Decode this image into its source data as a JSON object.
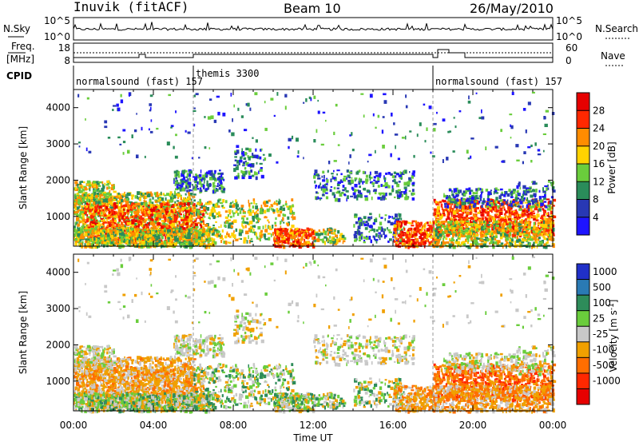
{
  "header": {
    "station": "Inuvik (fitACF)",
    "beam": "Beam 10",
    "date": "26/May/2010"
  },
  "top_panels": {
    "nsky_label": "N.Sky",
    "nsky_ticks": [
      "10^5",
      "10^0"
    ],
    "nsearch_label": "N.Search",
    "nsearch_ticks": [
      "10^5",
      "10^0"
    ],
    "freq_label": "Freq.",
    "freq_unit": "[MHz]",
    "freq_ticks": [
      "18",
      "8"
    ],
    "nave_label": "Nave",
    "nave_ticks": [
      "60",
      "0"
    ],
    "cpid_label": "CPID",
    "cpid_segments": [
      {
        "name": "normalsound (fast) 157",
        "start": 0,
        "end": 6
      },
      {
        "name": "themis 3300",
        "start": 6,
        "end": 18
      },
      {
        "name": "normalsound (fast) 157",
        "start": 18,
        "end": 24
      }
    ]
  },
  "chart_data": [
    {
      "type": "heatmap",
      "name": "power",
      "ylabel": "Slant Range [km]",
      "xlabel": "Time UT",
      "xlim": [
        0,
        24
      ],
      "ylim": [
        180,
        4500
      ],
      "x_ticks": [
        "00:00",
        "04:00",
        "08:00",
        "12:00",
        "16:00",
        "20:00",
        "00:00"
      ],
      "y_ticks": [
        1000,
        2000,
        3000,
        4000
      ],
      "colorbar_label": "Power [dB]",
      "colorbar_ticks": [
        "4",
        "8",
        "12",
        "16",
        "20",
        "24",
        "28"
      ],
      "colorbar_colors": [
        "#1e14ff",
        "#2838b4",
        "#2a8c5a",
        "#6acd3c",
        "#ffd200",
        "#ff8c00",
        "#ff2800",
        "#e60000"
      ]
    },
    {
      "type": "heatmap",
      "name": "velocity",
      "ylabel": "Slant Range [km]",
      "xlabel": "Time UT",
      "xlim": [
        0,
        24
      ],
      "ylim": [
        180,
        4500
      ],
      "x_ticks": [
        "00:00",
        "04:00",
        "08:00",
        "12:00",
        "16:00",
        "20:00",
        "00:00"
      ],
      "y_ticks": [
        1000,
        2000,
        3000,
        4000
      ],
      "colorbar_label": "Velocity [m s",
      "colorbar_label_sup": "-1",
      "colorbar_label_end": "]",
      "colorbar_ticks": [
        "1000",
        "500",
        "100",
        "25",
        "-25",
        "-100",
        "-500",
        "-1000"
      ],
      "colorbar_colors": [
        "#2030c8",
        "#2a7ab4",
        "#2e8c5a",
        "#6acd3c",
        "#c8c8c8",
        "#f0a000",
        "#ff6e00",
        "#ff2800",
        "#e60000"
      ]
    }
  ],
  "footer": {
    "xlabel": "Time UT"
  }
}
